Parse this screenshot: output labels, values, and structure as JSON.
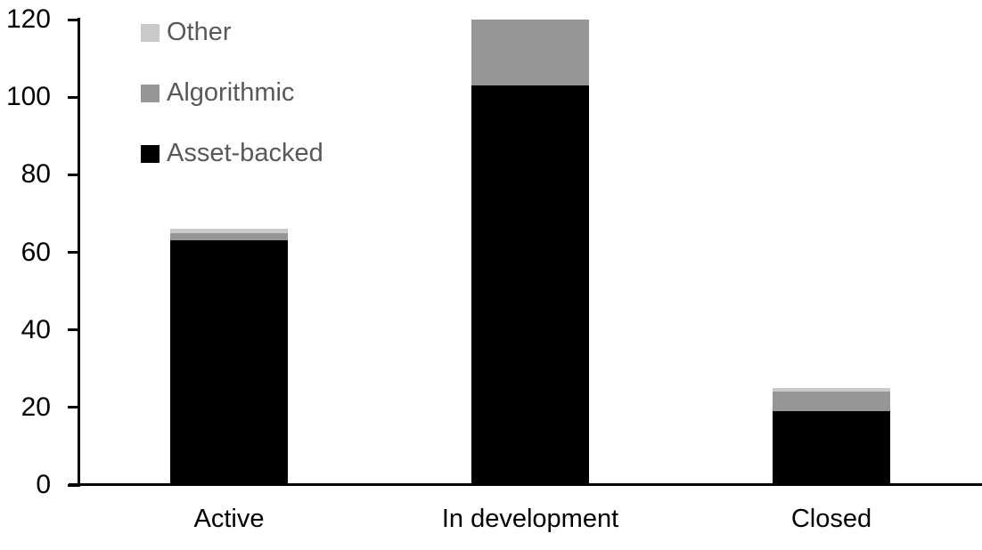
{
  "chart_data": {
    "type": "bar",
    "stacked": true,
    "title": "",
    "xlabel": "",
    "ylabel": "",
    "categories": [
      "Active",
      "In development",
      "Closed"
    ],
    "series": [
      {
        "name": "Asset-backed",
        "color": "#000000",
        "values": [
          63,
          103,
          19
        ]
      },
      {
        "name": "Algorithmic",
        "color": "#969696",
        "values": [
          2,
          17,
          5
        ]
      },
      {
        "name": "Other",
        "color": "#c9c9c9",
        "values": [
          1,
          0,
          1
        ]
      }
    ],
    "stack_totals": [
      66,
      120,
      25
    ],
    "yticks": [
      0,
      20,
      40,
      60,
      80,
      100,
      120
    ],
    "ylim": [
      0,
      120
    ],
    "grid": false,
    "legend": {
      "position": "top-left",
      "entries": [
        {
          "label": "Other",
          "color": "#c9c9c9"
        },
        {
          "label": "Algorithmic",
          "color": "#969696"
        },
        {
          "label": "Asset-backed",
          "color": "#000000"
        }
      ]
    },
    "colors": {
      "axis": "#000000",
      "tick_label": "#000000",
      "legend_text": "#595959",
      "background": "#ffffff"
    }
  }
}
